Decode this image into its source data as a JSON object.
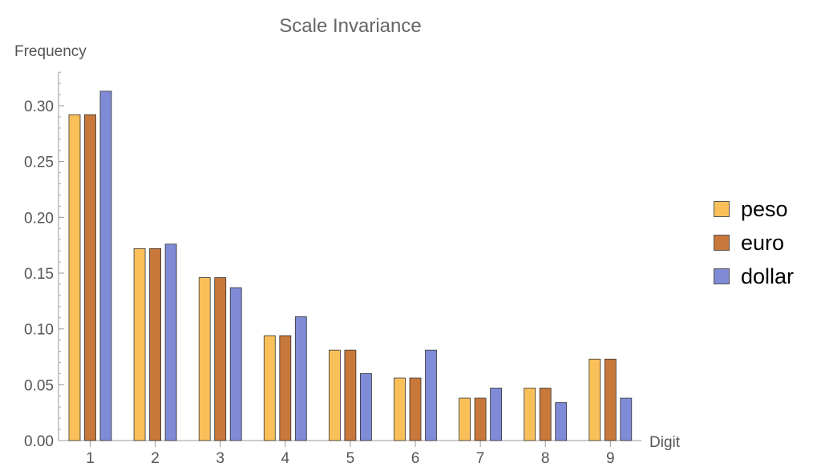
{
  "chart_data": {
    "type": "bar",
    "title": "Scale Invariance",
    "xlabel": "Digit",
    "ylabel": "Frequency",
    "categories": [
      "1",
      "2",
      "3",
      "4",
      "5",
      "6",
      "7",
      "8",
      "9"
    ],
    "ylim": [
      0,
      0.33
    ],
    "yticks": [
      "0.00",
      "0.05",
      "0.10",
      "0.15",
      "0.20",
      "0.25",
      "0.30"
    ],
    "ytick_values": [
      0,
      0.05,
      0.1,
      0.15,
      0.2,
      0.25,
      0.3
    ],
    "grid": false,
    "legend_position": "right",
    "series": [
      {
        "name": "peso",
        "color": "#F9C05A",
        "values": [
          0.292,
          0.172,
          0.146,
          0.094,
          0.081,
          0.056,
          0.038,
          0.047,
          0.073
        ]
      },
      {
        "name": "euro",
        "color": "#C8783A",
        "values": [
          0.292,
          0.172,
          0.146,
          0.094,
          0.081,
          0.056,
          0.038,
          0.047,
          0.073
        ]
      },
      {
        "name": "dollar",
        "color": "#7F8BD6",
        "values": [
          0.313,
          0.176,
          0.137,
          0.111,
          0.06,
          0.081,
          0.047,
          0.034,
          0.038
        ]
      }
    ]
  }
}
